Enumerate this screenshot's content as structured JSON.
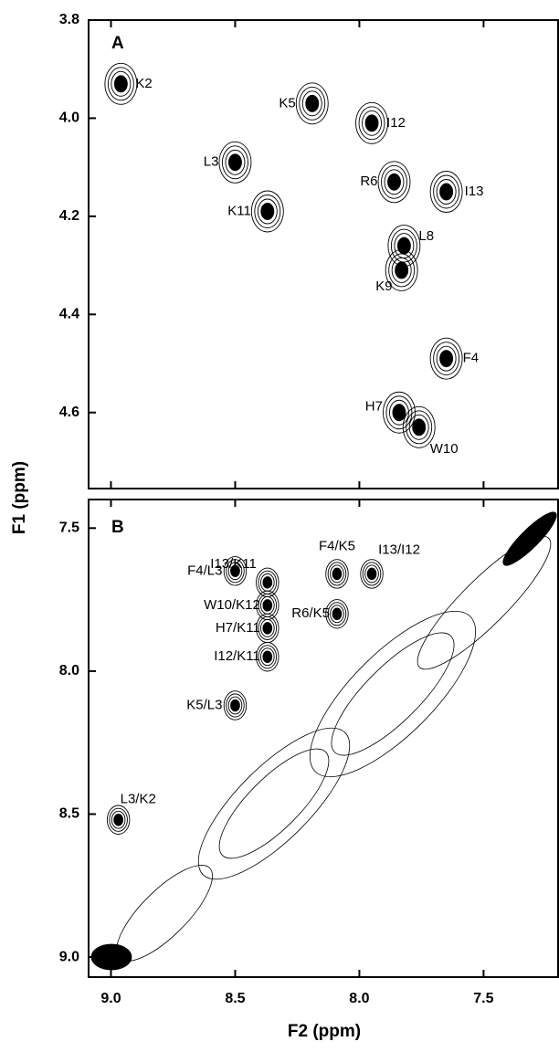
{
  "chart_data": [
    {
      "type": "scatter",
      "panel": "A",
      "xlim": [
        9.09,
        7.2
      ],
      "ylim": [
        3.8,
        4.755
      ],
      "yticks": [
        3.8,
        {
          "value": 4.0,
          "label": "4.0"
        },
        4.2,
        4.4,
        4.6
      ],
      "color": "#000000",
      "points": [
        {
          "label": "K2",
          "x": 8.96,
          "y": 3.93
        },
        {
          "label": "K5",
          "x": 8.19,
          "y": 3.97
        },
        {
          "label": "I12",
          "x": 7.95,
          "y": 4.01
        },
        {
          "label": "L3",
          "x": 8.5,
          "y": 4.09
        },
        {
          "label": "K11",
          "x": 8.37,
          "y": 4.19
        },
        {
          "label": "R6",
          "x": 7.86,
          "y": 4.13
        },
        {
          "label": "I13",
          "x": 7.65,
          "y": 4.15
        },
        {
          "label": "L8",
          "x": 7.82,
          "y": 4.26
        },
        {
          "label": "K9",
          "x": 7.83,
          "y": 4.31
        },
        {
          "label": "F4",
          "x": 7.65,
          "y": 4.49
        },
        {
          "label": "H7",
          "x": 7.84,
          "y": 4.6
        },
        {
          "label": "W10",
          "x": 7.76,
          "y": 4.63
        }
      ]
    },
    {
      "type": "scatter",
      "panel": "B",
      "xlabel": "F2 (ppm)",
      "ylabel": "F1 (ppm)",
      "xlim": [
        9.09,
        7.2
      ],
      "ylim": [
        7.4,
        9.07
      ],
      "xticks": [
        {
          "value": 9.0,
          "label": "9.0"
        },
        8.5,
        {
          "value": 8.0,
          "label": "8.0"
        },
        7.5
      ],
      "yticks": [
        7.5,
        {
          "value": 8.0,
          "label": "8.0"
        },
        8.5,
        {
          "value": 9.0,
          "label": "9.0"
        }
      ],
      "color": "#000000",
      "points": [
        {
          "label": "F4/L3",
          "x": 8.5,
          "y": 7.65
        },
        {
          "label": "I13/K11",
          "x": 8.37,
          "y": 7.69
        },
        {
          "label": "W10/K12",
          "x": 8.37,
          "y": 7.77
        },
        {
          "label": "H7/K11",
          "x": 8.37,
          "y": 7.85
        },
        {
          "label": "I12/K11",
          "x": 8.37,
          "y": 7.95
        },
        {
          "label": "R6/K5",
          "x": 8.09,
          "y": 7.8
        },
        {
          "label": "F4/K5",
          "x": 8.09,
          "y": 7.66
        },
        {
          "label": "I13/I12",
          "x": 7.95,
          "y": 7.66
        },
        {
          "label": "K5/L3",
          "x": 8.5,
          "y": 8.12
        },
        {
          "label": "L3/K2",
          "x": 8.97,
          "y": 8.52
        }
      ]
    }
  ]
}
